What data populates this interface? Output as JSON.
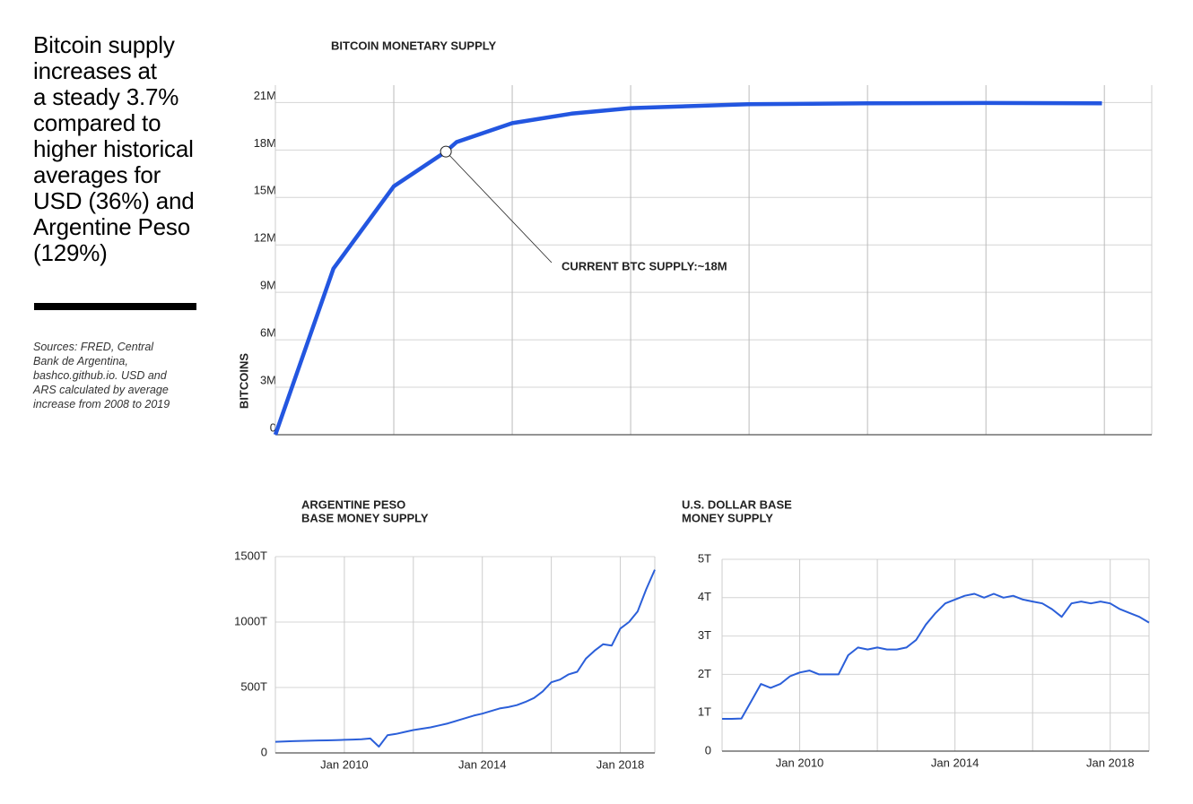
{
  "headline": [
    "Bitcoin supply",
    "increases at",
    "a steady 3.7%",
    "compared to",
    "higher historical",
    "averages for",
    "USD (36%) and",
    "Argentine Peso",
    "(129%)"
  ],
  "sources": [
    "Sources: FRED, Central",
    "Bank de Argentina,",
    "bashco.github.io. USD and",
    "ARS calculated by average",
    "increase from 2008 to 2019"
  ],
  "chart_data": [
    {
      "type": "line",
      "title": [
        "BITCOIN MONETARY SUPPLY"
      ],
      "y_label": "BITCOINS",
      "color": "#2356e0",
      "x": [
        0,
        0.49,
        1,
        1.44,
        1.53,
        2,
        2.5,
        3,
        4,
        5,
        6,
        6.98
      ],
      "values": [
        0,
        10500000,
        15700000,
        17900000,
        18500000,
        19700000,
        20300000,
        20650000,
        20900000,
        20950000,
        20970000,
        20950000
      ],
      "xlim": [
        0,
        7.4
      ],
      "xgrid": [
        1,
        2,
        3,
        4,
        5,
        6,
        7
      ],
      "ylim": [
        0,
        22100000
      ],
      "yticks": [
        {
          "value": 0,
          "label": "0"
        },
        {
          "value": 3000000,
          "label": "3M"
        },
        {
          "value": 6000000,
          "label": "6M"
        },
        {
          "value": 9000000,
          "label": "9M"
        },
        {
          "value": 12000000,
          "label": "12M"
        },
        {
          "value": 15000000,
          "label": "15M"
        },
        {
          "value": 18000000,
          "label": "18M"
        },
        {
          "value": 21000000,
          "label": "21M"
        }
      ],
      "annotation": {
        "text": "CURRENT BTC SUPPLY:~18M",
        "x": 1.44,
        "y": 17900000
      }
    },
    {
      "type": "line",
      "title": [
        "ARGENTINE PESO",
        "BASE MONEY SUPPLY"
      ],
      "color": "#2b5fd9",
      "x": [
        "2008-01",
        "2008-04",
        "2008-07",
        "2008-10",
        "2009-01",
        "2009-04",
        "2009-07",
        "2009-10",
        "2010-01",
        "2010-04",
        "2010-07",
        "2010-10",
        "2011-01",
        "2011-04",
        "2011-07",
        "2011-10",
        "2012-01",
        "2012-04",
        "2012-07",
        "2012-10",
        "2013-01",
        "2013-04",
        "2013-07",
        "2013-10",
        "2014-01",
        "2014-04",
        "2014-07",
        "2014-10",
        "2015-01",
        "2015-04",
        "2015-07",
        "2015-10",
        "2016-01",
        "2016-04",
        "2016-07",
        "2016-10",
        "2017-01",
        "2017-04",
        "2017-07",
        "2017-10",
        "2018-01",
        "2018-04",
        "2018-07",
        "2018-10",
        "2019-01"
      ],
      "values": [
        85,
        88,
        90,
        92,
        93,
        95,
        96,
        98,
        100,
        102,
        105,
        110,
        48,
        135,
        145,
        160,
        175,
        185,
        195,
        210,
        225,
        245,
        265,
        285,
        300,
        320,
        340,
        350,
        365,
        390,
        420,
        470,
        540,
        560,
        600,
        620,
        720,
        780,
        830,
        820,
        950,
        1000,
        1080,
        1250,
        1400
      ],
      "xlim": [
        "2008-01",
        "2019-01"
      ],
      "xticks": [
        {
          "value": "2010-01",
          "label": "Jan 2010"
        },
        {
          "value": "2012-01",
          "label": null
        },
        {
          "value": "2014-01",
          "label": "Jan 2014"
        },
        {
          "value": "2016-01",
          "label": null
        },
        {
          "value": "2018-01",
          "label": "Jan 2018"
        }
      ],
      "ylim": [
        0,
        1500
      ],
      "yticks": [
        {
          "value": 0,
          "label": "0"
        },
        {
          "value": 500,
          "label": "500T"
        },
        {
          "value": 1000,
          "label": "1000T"
        },
        {
          "value": 1500,
          "label": "1500T"
        }
      ]
    },
    {
      "type": "line",
      "title": [
        "U.S. DOLLAR BASE",
        "MONEY SUPPLY"
      ],
      "color": "#2b5fd9",
      "x": [
        "2008-01",
        "2008-04",
        "2008-07",
        "2008-10",
        "2009-01",
        "2009-04",
        "2009-07",
        "2009-10",
        "2010-01",
        "2010-04",
        "2010-07",
        "2010-10",
        "2011-01",
        "2011-04",
        "2011-07",
        "2011-10",
        "2012-01",
        "2012-04",
        "2012-07",
        "2012-10",
        "2013-01",
        "2013-04",
        "2013-07",
        "2013-10",
        "2014-01",
        "2014-04",
        "2014-07",
        "2014-10",
        "2015-01",
        "2015-04",
        "2015-07",
        "2015-10",
        "2016-01",
        "2016-04",
        "2016-07",
        "2016-10",
        "2017-01",
        "2017-04",
        "2017-07",
        "2017-10",
        "2018-01",
        "2018-04",
        "2018-07",
        "2018-10",
        "2019-01"
      ],
      "values": [
        0.84,
        0.84,
        0.85,
        1.3,
        1.75,
        1.65,
        1.75,
        1.95,
        2.05,
        2.1,
        2.0,
        2.0,
        2.0,
        2.5,
        2.7,
        2.65,
        2.7,
        2.65,
        2.65,
        2.7,
        2.9,
        3.3,
        3.6,
        3.85,
        3.95,
        4.05,
        4.1,
        4.0,
        4.1,
        4.0,
        4.05,
        3.95,
        3.9,
        3.85,
        3.7,
        3.5,
        3.85,
        3.9,
        3.85,
        3.9,
        3.85,
        3.7,
        3.6,
        3.5,
        3.35
      ],
      "xlim": [
        "2008-01",
        "2019-01"
      ],
      "xticks": [
        {
          "value": "2010-01",
          "label": "Jan 2010"
        },
        {
          "value": "2012-01",
          "label": null
        },
        {
          "value": "2014-01",
          "label": "Jan 2014"
        },
        {
          "value": "2016-01",
          "label": null
        },
        {
          "value": "2018-01",
          "label": "Jan 2018"
        }
      ],
      "ylim": [
        0,
        5
      ],
      "yticks": [
        {
          "value": 0,
          "label": "0"
        },
        {
          "value": 1,
          "label": "1T"
        },
        {
          "value": 2,
          "label": "2T"
        },
        {
          "value": 3,
          "label": "3T"
        },
        {
          "value": 4,
          "label": "4T"
        },
        {
          "value": 5,
          "label": "5T"
        }
      ]
    }
  ]
}
